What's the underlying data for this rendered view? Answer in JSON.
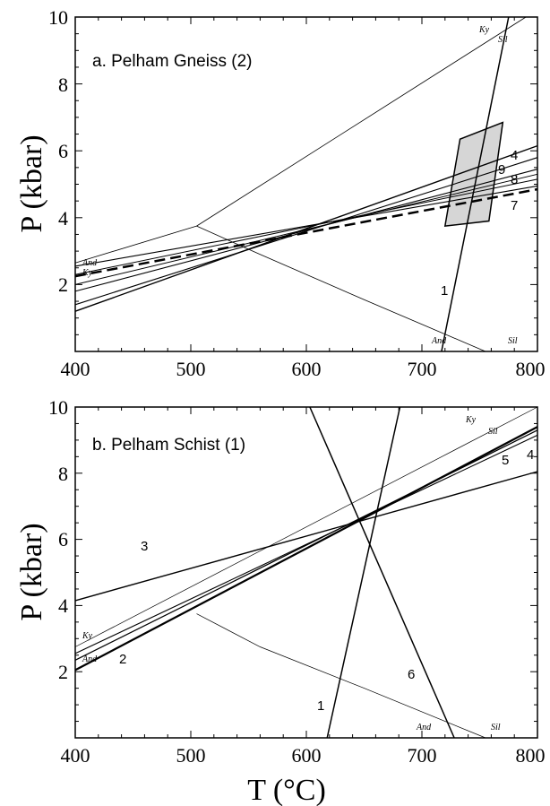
{
  "chart_data": [
    {
      "type": "line",
      "title": "a. Pelham Gneiss (2)",
      "xlabel": "",
      "ylabel": "P (kbar)",
      "xlim": [
        400,
        800
      ],
      "ylim": [
        0,
        10
      ],
      "x_ticks": [
        "400",
        "500",
        "600",
        "700",
        "800"
      ],
      "y_ticks": [
        "2",
        "4",
        "6",
        "8",
        "10"
      ],
      "grid": false,
      "aluminosilicate_labels": [
        "Ky",
        "Sil",
        "And",
        "Ky",
        "And",
        "Sil"
      ],
      "series": [
        {
          "label": "1",
          "points": [
            [
              717,
              0
            ],
            [
              775,
              10
            ]
          ],
          "width": 1.5
        },
        {
          "label": "4",
          "points": [
            [
              400,
              1.2
            ],
            [
              800,
              6.15
            ]
          ],
          "width": 1.4
        },
        {
          "label": "9",
          "points": [
            [
              400,
              1.4
            ],
            [
              800,
              5.8
            ]
          ],
          "width": 1.1
        },
        {
          "label": "8",
          "points": [
            [
              400,
              1.8
            ],
            [
              800,
              5.45
            ]
          ],
          "width": 1.1
        },
        {
          "label": "7",
          "points": [
            [
              400,
              2.55
            ],
            [
              800,
              4.95
            ]
          ],
          "width": 1.1
        },
        {
          "label": "",
          "points": [
            [
              400,
              2.25
            ],
            [
              800,
              4.85
            ]
          ],
          "width": 2.5,
          "dashed": true
        },
        {
          "label": "",
          "points": [
            [
              400,
              2.3
            ],
            [
              800,
              5.15
            ]
          ],
          "width": 1.0
        },
        {
          "label": "",
          "points": [
            [
              400,
              2.0
            ],
            [
              800,
              5.3
            ]
          ],
          "width": 1.0
        },
        {
          "label": "",
          "points": [
            [
              505,
              3.75
            ],
            [
              790,
              10
            ]
          ],
          "width": 0.8
        },
        {
          "label": "",
          "points": [
            [
              400,
              2.65
            ],
            [
              505,
              3.75
            ]
          ],
          "width": 0.8
        },
        {
          "label": "",
          "points": [
            [
              505,
              3.75
            ],
            [
              560,
              2.9
            ],
            [
              650,
              1.55
            ],
            [
              755,
              0
            ]
          ],
          "width": 0.8
        }
      ],
      "field": [
        [
          720,
          3.75
        ],
        [
          758,
          3.9
        ],
        [
          770,
          6.85
        ],
        [
          733,
          6.35
        ]
      ]
    },
    {
      "type": "line",
      "title": "b. Pelham Schist (1)",
      "xlabel": "T (°C)",
      "ylabel": "P (kbar)",
      "xlim": [
        400,
        800
      ],
      "ylim": [
        0,
        10
      ],
      "x_ticks": [
        "400",
        "500",
        "600",
        "700",
        "800"
      ],
      "y_ticks": [
        "2",
        "4",
        "6",
        "8",
        "10"
      ],
      "grid": false,
      "aluminosilicate_labels": [
        "Ky",
        "Sil",
        "Ky",
        "And",
        "And",
        "Sil"
      ],
      "series": [
        {
          "label": "1",
          "points": [
            [
              618,
              0
            ],
            [
              681,
              10
            ]
          ],
          "width": 1.5
        },
        {
          "label": "6",
          "points": [
            [
              603,
              10
            ],
            [
              728,
              0
            ]
          ],
          "width": 1.5
        },
        {
          "label": "3",
          "points": [
            [
              400,
              4.15
            ],
            [
              800,
              8.05
            ]
          ],
          "width": 1.4
        },
        {
          "label": "2",
          "points": [
            [
              400,
              2.05
            ],
            [
              800,
              9.4
            ]
          ],
          "width": 2.2
        },
        {
          "label": "4",
          "points": [
            [
              400,
              2.35
            ],
            [
              800,
              9.3
            ]
          ],
          "width": 1.3
        },
        {
          "label": "5",
          "points": [
            [
              400,
              2.55
            ],
            [
              800,
              9.15
            ]
          ],
          "width": 1.1
        },
        {
          "label": "",
          "points": [
            [
              400,
              2.75
            ],
            [
              800,
              10
            ]
          ],
          "width": 0.7
        },
        {
          "label": "",
          "points": [
            [
              505,
              3.75
            ],
            [
              560,
              2.75
            ],
            [
              650,
              1.5
            ],
            [
              755,
              0
            ]
          ],
          "width": 0.7
        }
      ],
      "field": []
    }
  ]
}
